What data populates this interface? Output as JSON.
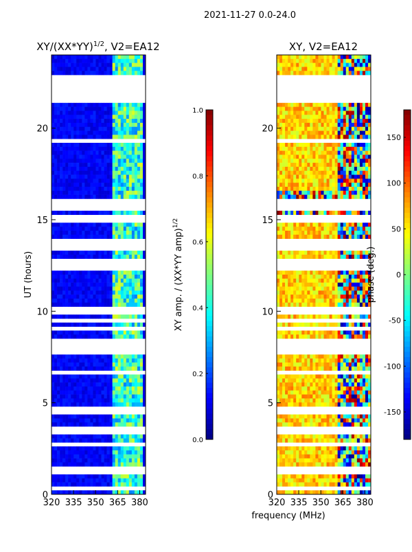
{
  "suptitle": "2021-11-27 0.0-24.0",
  "chart_data": [
    {
      "type": "heatmap",
      "title": "XY/(XX*YY)^1/2, V2=EA12",
      "title_main": "XY/(XX*YY)",
      "title_exp": "1/2",
      "title_suffix": ", V2=EA12",
      "xlabel": "frequency (MHz)",
      "ylabel": "UT (hours)",
      "xlim": [
        320,
        384
      ],
      "ylim": [
        0,
        24
      ],
      "xticks": [
        "320",
        "335",
        "350",
        "365",
        "380"
      ],
      "yticks": [
        "0",
        "5",
        "10",
        "15",
        "20"
      ],
      "colormap": "jet",
      "colorbar": {
        "label_main": "XY amp. / (XX*YY amp)",
        "label_exp": "1/2",
        "range": [
          0,
          1
        ],
        "ticks": [
          "0.0",
          "0.2",
          "0.4",
          "0.6",
          "0.8",
          "1.0"
        ]
      },
      "typical_value_below_362MHz": 0.1,
      "typical_value_362_to_382MHz": 0.4
    },
    {
      "type": "heatmap",
      "title": "XY, V2=EA12",
      "xlabel": "frequency (MHz)",
      "ylabel": "",
      "xlim": [
        320,
        384
      ],
      "ylim": [
        0,
        24
      ],
      "xticks": [
        "320",
        "335",
        "350",
        "365",
        "380"
      ],
      "yticks": [
        "0",
        "5",
        "10",
        "15",
        "20"
      ],
      "colormap": "jet",
      "colorbar": {
        "label": "phase (deg.)",
        "range": [
          -180,
          180
        ],
        "ticks": [
          "-150",
          "-100",
          "-50",
          "0",
          "50",
          "100",
          "150"
        ]
      },
      "typical_phase_below_362MHz_deg": 60,
      "typical_phase_above_362MHz_deg": "mixed -180 to 180"
    }
  ],
  "flagged_hours": [
    0.3,
    1.3,
    1.45,
    2.7,
    3.5,
    4.6,
    6.7,
    7.8,
    8.0,
    8.3,
    9.0,
    9.5,
    10.0,
    12.4,
    12.7,
    13.5,
    13.7,
    15.05,
    15.2,
    15.7,
    15.9,
    19.3,
    21.6,
    21.9,
    22.2,
    22.5,
    22.8
  ]
}
